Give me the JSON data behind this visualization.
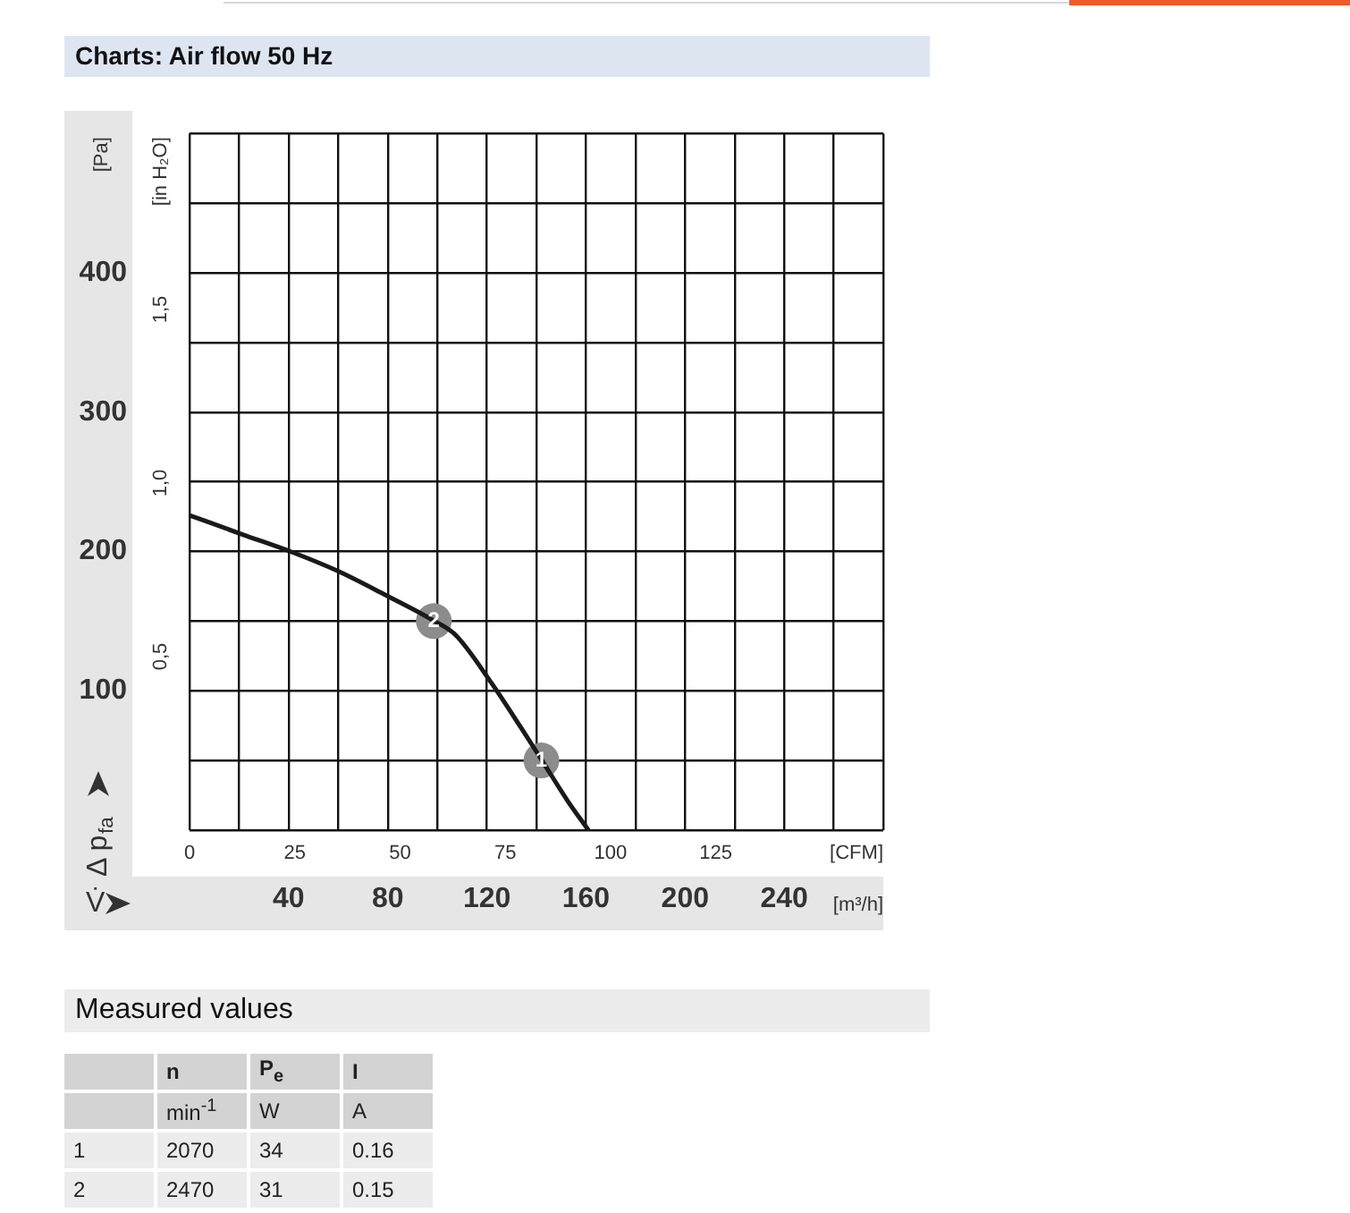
{
  "chart_data": [
    {
      "type": "line",
      "title": "Charts: Air flow 50 Hz",
      "xlabel": "[m³/h]",
      "x2label": "[CFM]",
      "ylabel": "[Pa]",
      "y2label": "[in H₂O]",
      "annotations": [
        "Δ p$_{fa}$",
        "V̇",
        {
          "text": "1",
          "x": 142,
          "y": 50
        },
        {
          "text": "2",
          "x": 98.6,
          "y": 150
        }
      ],
      "series": [
        {
          "type": "line",
          "color": "#1a1a1a",
          "marker": "none",
          "x": [
            0,
            21.7,
            40.7,
            59.8,
            78.8,
            97.9,
            107.4,
            121.7,
            133.6,
            141.9,
            152.6,
            161
          ],
          "values": [
            226,
            212,
            200,
            186,
            169,
            151,
            140,
            106,
            74,
            51,
            21,
            0
          ]
        },
        {
          "type": "scatter",
          "color": "#8c8c8c",
          "marker": "circle",
          "x": [
            98.6,
            142
          ],
          "values": [
            150,
            50
          ]
        }
      ],
      "xlim": [
        0,
        280
      ],
      "xticks": [
        {
          "value": 0,
          "label": null
        },
        {
          "value": 20,
          "label": null
        },
        40,
        {
          "value": 60,
          "label": null
        },
        80,
        {
          "value": 100,
          "label": null
        },
        120,
        {
          "value": 140,
          "label": null
        },
        160,
        {
          "value": 180,
          "label": null
        },
        200,
        {
          "value": 220,
          "label": null
        },
        240,
        {
          "value": 260,
          "label": null
        },
        {
          "value": 280,
          "label": null
        }
      ],
      "x2lim": [
        0,
        164.8
      ],
      "x2ticks": [
        0,
        25,
        50,
        75,
        100,
        125
      ],
      "ylim": [
        0,
        500
      ],
      "yticks": [
        {
          "value": 0,
          "label": null
        },
        {
          "value": 50,
          "label": null
        },
        100,
        {
          "value": 150,
          "label": null
        },
        200,
        {
          "value": 250,
          "label": null
        },
        300,
        {
          "value": 350,
          "label": null
        },
        400,
        {
          "value": 450,
          "label": null
        },
        {
          "value": 500,
          "label": null
        }
      ],
      "y2lim": [
        0,
        2.007
      ],
      "y2ticks": [
        {
          "value": 0.5,
          "label": "0,5"
        },
        {
          "value": 1.0,
          "label": "1,0"
        },
        {
          "value": 1.5,
          "label": "1,5"
        }
      ],
      "grid": true
    },
    {
      "type": "other",
      "title": "Measured values",
      "categories": [
        "1",
        "2"
      ],
      "series": [
        {
          "name": "n",
          "values": [
            2070,
            2470
          ]
        },
        {
          "name": "P$_{e}$",
          "values": [
            34,
            31
          ]
        },
        {
          "name": "I",
          "values": [
            0.16,
            0.15
          ]
        }
      ],
      "annotations": [
        "min$^{-1}$",
        "W",
        "A"
      ],
      "data_labels": true
    }
  ]
}
